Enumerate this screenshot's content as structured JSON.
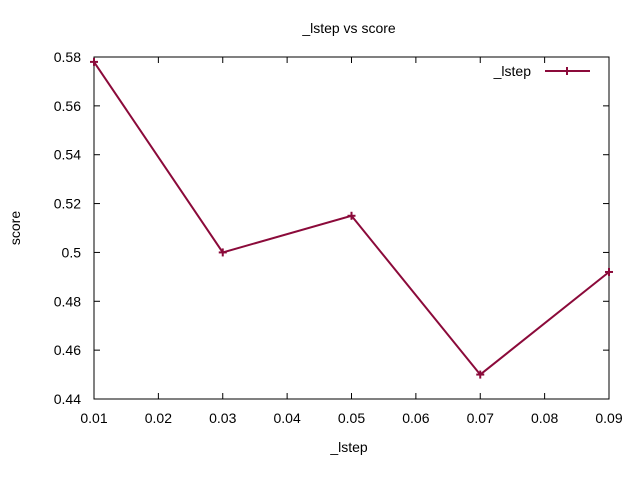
{
  "chart_data": {
    "type": "line",
    "title": "_lstep vs score",
    "xlabel": "_lstep",
    "ylabel": "score",
    "xlim": [
      0.01,
      0.09
    ],
    "ylim": [
      0.44,
      0.58
    ],
    "x_ticks": [
      "0.01",
      "0.02",
      "0.03",
      "0.04",
      "0.05",
      "0.06",
      "0.07",
      "0.08",
      "0.09"
    ],
    "y_ticks": [
      "0.44",
      "0.46",
      "0.48",
      "0.5",
      "0.52",
      "0.54",
      "0.56",
      "0.58"
    ],
    "grid": false,
    "legend_position": "top-right",
    "series": [
      {
        "name": "_lstep",
        "color": "#8b0a3a",
        "marker": "plus",
        "x": [
          0.01,
          0.03,
          0.05,
          0.07,
          0.09
        ],
        "values": [
          0.578,
          0.5,
          0.515,
          0.45,
          0.492
        ]
      }
    ]
  }
}
